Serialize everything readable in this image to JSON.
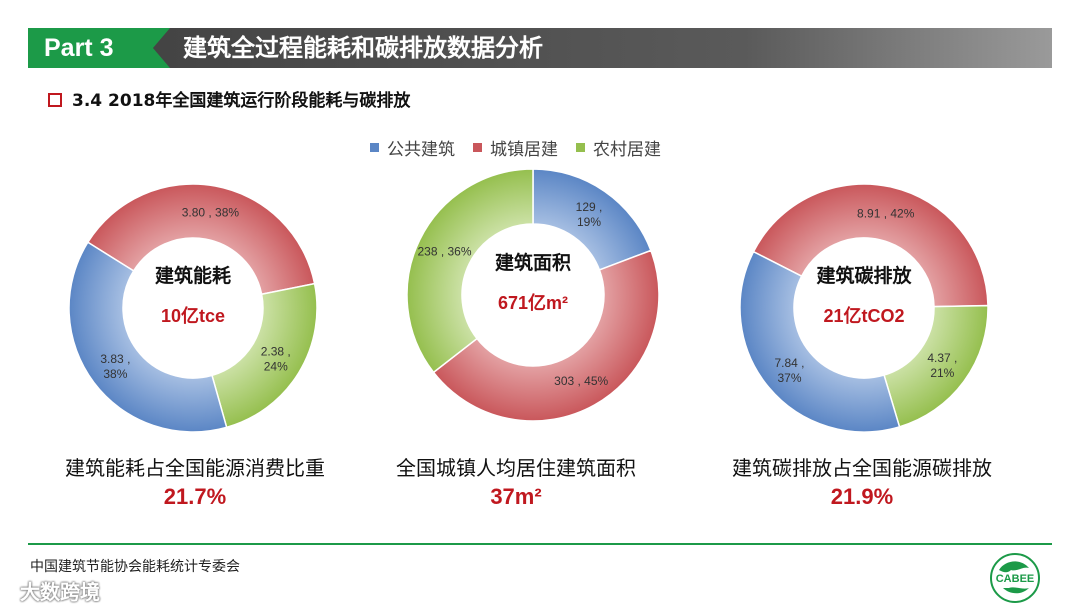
{
  "header": {
    "part_label": "Part 3",
    "title": "建筑全过程能耗和碳排放数据分析"
  },
  "section": {
    "title": "3.4 2018年全国建筑运行阶段能耗与碳排放"
  },
  "legend": [
    {
      "name": "公共建筑",
      "color": "#5b86c5"
    },
    {
      "name": "城镇居建",
      "color": "#c9575b"
    },
    {
      "name": "农村居建",
      "color": "#95bf4e"
    }
  ],
  "chart_data": [
    {
      "type": "pie",
      "variant": "donut",
      "center_title": "建筑能耗",
      "center_value": "10亿tce",
      "series": [
        {
          "name": "公共建筑",
          "value": 3.83,
          "percent": 38,
          "label_line1": "3.83 ,",
          "label_line2": "38%"
        },
        {
          "name": "城镇居建",
          "value": 3.8,
          "percent": 38,
          "label_line1": "3.80 , 38%",
          "label_line2": ""
        },
        {
          "name": "农村居建",
          "value": 2.38,
          "percent": 24,
          "label_line1": "2.38 ,",
          "label_line2": "24%"
        }
      ],
      "caption": "建筑能耗占全国能源消费比重",
      "caption_value": "21.7%"
    },
    {
      "type": "pie",
      "variant": "donut",
      "center_title": "建筑面积",
      "center_value": "671亿m²",
      "series": [
        {
          "name": "公共建筑",
          "value": 129,
          "percent": 19,
          "label_line1": "129 ,",
          "label_line2": "19%"
        },
        {
          "name": "城镇居建",
          "value": 303,
          "percent": 45,
          "label_line1": "303 , 45%",
          "label_line2": ""
        },
        {
          "name": "农村居建",
          "value": 238,
          "percent": 36,
          "label_line1": "238 , 36%",
          "label_line2": ""
        }
      ],
      "caption": "全国城镇人均居住建筑面积",
      "caption_value": "37m²"
    },
    {
      "type": "pie",
      "variant": "donut",
      "center_title": "建筑碳排放",
      "center_value": "21亿tCO2",
      "series": [
        {
          "name": "公共建筑",
          "value": 7.84,
          "percent": 37,
          "label_line1": "7.84 ,",
          "label_line2": "37%"
        },
        {
          "name": "城镇居建",
          "value": 8.91,
          "percent": 42,
          "label_line1": "8.91 , 42%",
          "label_line2": ""
        },
        {
          "name": "农村居建",
          "value": 4.37,
          "percent": 21,
          "label_line1": "4.37 ,",
          "label_line2": "21%"
        }
      ],
      "caption": "建筑碳排放占全国能源碳排放",
      "caption_value": "21.9%"
    }
  ],
  "footer": {
    "organization": "中国建筑节能协会能耗统计专委会",
    "logo_text": "CABEE",
    "watermark": "大数跨境"
  }
}
